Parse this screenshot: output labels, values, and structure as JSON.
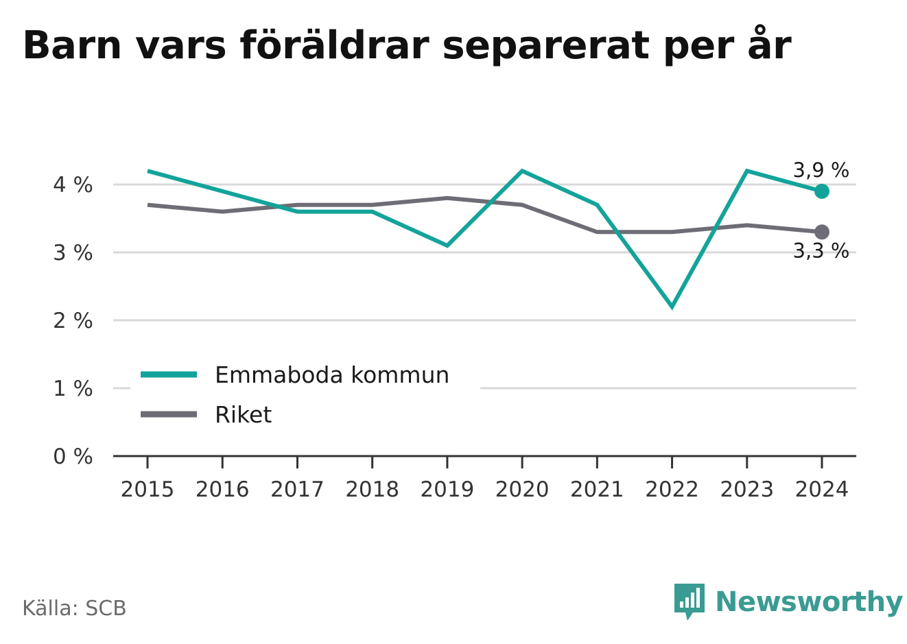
{
  "title": "Barn vars föräldrar separerat per år",
  "source": "Källa: SCB",
  "brand": {
    "name": "Newsworthy",
    "icon": "newsworthy-logo-icon"
  },
  "colors": {
    "series_1": "#14a39a",
    "series_2": "#6e6d75",
    "grid": "#d9d9d9",
    "axis": "#333333"
  },
  "chart_data": {
    "type": "line",
    "title": "Barn vars föräldrar separerat per år",
    "xlabel": "",
    "ylabel": "",
    "x": [
      "2015",
      "2016",
      "2017",
      "2018",
      "2019",
      "2020",
      "2021",
      "2022",
      "2023",
      "2024"
    ],
    "ylim": [
      0,
      4.5
    ],
    "yticks": [
      0,
      1,
      2,
      3,
      4
    ],
    "ytick_labels": [
      "0 %",
      "1 %",
      "2 %",
      "3 %",
      "4 %"
    ],
    "grid": true,
    "legend_position": "bottom-left",
    "series": [
      {
        "name": "Emmaboda kommun",
        "color": "#14a39a",
        "values": [
          4.2,
          3.9,
          3.6,
          3.6,
          3.1,
          4.2,
          3.7,
          2.2,
          4.2,
          3.9
        ],
        "end_label": "3,9 %"
      },
      {
        "name": "Riket",
        "color": "#6e6d75",
        "values": [
          3.7,
          3.6,
          3.7,
          3.7,
          3.8,
          3.7,
          3.3,
          3.3,
          3.4,
          3.3
        ],
        "end_label": "3,3 %"
      }
    ]
  }
}
